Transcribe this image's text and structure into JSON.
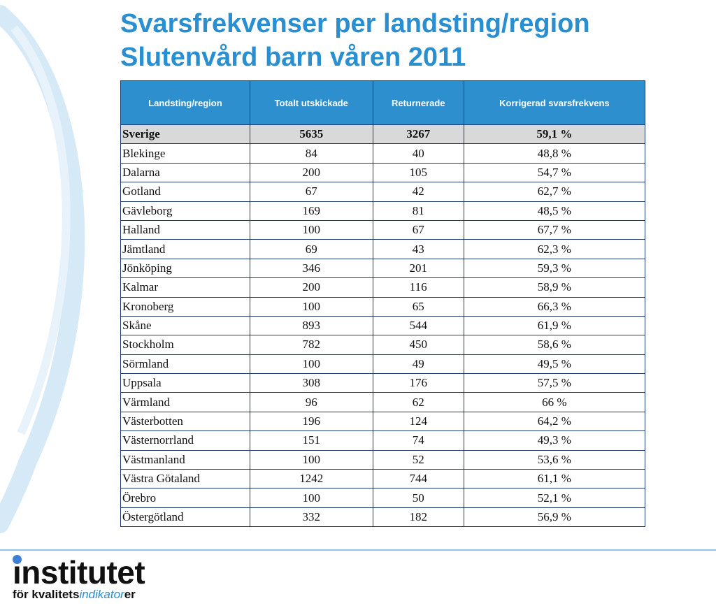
{
  "header": {
    "title_line1": "Svarsfrekvenser per landsting/region",
    "title_line2": "Slutenvård barn våren 2011"
  },
  "table": {
    "columns": [
      "Landsting/region",
      "Totalt utskickade",
      "Returnerade",
      "Korrigerad svarsfrekvens"
    ],
    "rows": [
      [
        "Sverige",
        5635,
        3267,
        "59,1 %"
      ],
      [
        "Blekinge",
        84,
        40,
        "48,8 %"
      ],
      [
        "Dalarna",
        200,
        105,
        "54,7 %"
      ],
      [
        "Gotland",
        67,
        42,
        "62,7 %"
      ],
      [
        "Gävleborg",
        169,
        81,
        "48,5 %"
      ],
      [
        "Halland",
        100,
        67,
        "67,7 %"
      ],
      [
        "Jämtland",
        69,
        43,
        "62,3 %"
      ],
      [
        "Jönköping",
        346,
        201,
        "59,3 %"
      ],
      [
        "Kalmar",
        200,
        116,
        "58,9 %"
      ],
      [
        "Kronoberg",
        100,
        65,
        "66,3 %"
      ],
      [
        "Skåne",
        893,
        544,
        "61,9 %"
      ],
      [
        "Stockholm",
        782,
        450,
        "58,6 %"
      ],
      [
        "Sörmland",
        100,
        49,
        "49,5 %"
      ],
      [
        "Uppsala",
        308,
        176,
        "57,5 %"
      ],
      [
        "Värmland",
        96,
        62,
        "66 %"
      ],
      [
        "Västerbotten",
        196,
        124,
        "64,2 %"
      ],
      [
        "Västernorrland",
        151,
        74,
        "49,3 %"
      ],
      [
        "Västmanland",
        100,
        52,
        "53,6 %"
      ],
      [
        "Västra Götaland",
        1242,
        744,
        "61,1 %"
      ],
      [
        "Örebro",
        100,
        50,
        "52,1 %"
      ],
      [
        "Östergötland",
        332,
        182,
        "56,9 %"
      ]
    ]
  },
  "logo": {
    "name": "institutet",
    "sub_prefix": "för kvalitets",
    "sub_highlight": "indikator",
    "sub_suffix": "er"
  }
}
